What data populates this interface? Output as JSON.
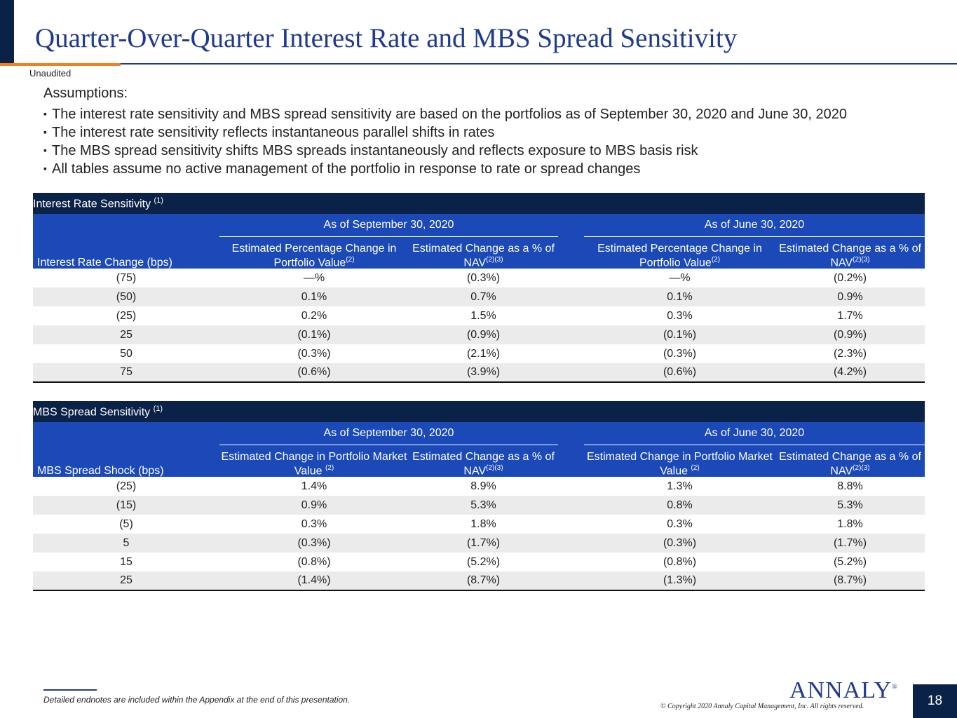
{
  "header": {
    "title": "Quarter-Over-Quarter Interest Rate and MBS Spread Sensitivity",
    "subtitle": "Unaudited"
  },
  "assumptions": {
    "heading": "Assumptions:",
    "bullets": [
      "The interest rate sensitivity and MBS spread sensitivity are based on the portfolios as of September 30, 2020 and June 30, 2020",
      "The interest rate sensitivity reflects instantaneous parallel shifts in rates",
      "The MBS spread sensitivity shifts MBS spreads instantaneously and reflects exposure to MBS basis risk",
      "All tables assume no active management of the portfolio in response to rate or spread changes"
    ]
  },
  "interest_table": {
    "title": "Interest Rate Sensitivity",
    "title_note": "(1)",
    "period1": "As of September 30, 2020",
    "period2": "As of June 30, 2020",
    "row_header": "Interest Rate Change (bps)",
    "col1_label": "Estimated Percentage Change in Portfolio Value",
    "col1_note": "(2)",
    "col2_label": "Estimated Change as a % of NAV",
    "col2_note": "(2)(3)",
    "rows": [
      {
        "change": "(75)",
        "sep_pv": "—%",
        "sep_nav": "(0.3%)",
        "jun_pv": "—%",
        "jun_nav": "(0.2%)"
      },
      {
        "change": "(50)",
        "sep_pv": "0.1%",
        "sep_nav": "0.7%",
        "jun_pv": "0.1%",
        "jun_nav": "0.9%"
      },
      {
        "change": "(25)",
        "sep_pv": "0.2%",
        "sep_nav": "1.5%",
        "jun_pv": "0.3%",
        "jun_nav": "1.7%"
      },
      {
        "change": "25",
        "sep_pv": "(0.1%)",
        "sep_nav": "(0.9%)",
        "jun_pv": "(0.1%)",
        "jun_nav": "(0.9%)"
      },
      {
        "change": "50",
        "sep_pv": "(0.3%)",
        "sep_nav": "(2.1%)",
        "jun_pv": "(0.3%)",
        "jun_nav": "(2.3%)"
      },
      {
        "change": "75",
        "sep_pv": "(0.6%)",
        "sep_nav": "(3.9%)",
        "jun_pv": "(0.6%)",
        "jun_nav": "(4.2%)"
      }
    ]
  },
  "spread_table": {
    "title": "MBS Spread Sensitivity",
    "title_note": "(1)",
    "period1": "As of September 30, 2020",
    "period2": "As of June 30, 2020",
    "row_header": "MBS Spread Shock (bps)",
    "col1_label": "Estimated Change in Portfolio Market Value",
    "col1_note": "(2)",
    "col2_label": "Estimated Change as a % of NAV",
    "col2_note": "(2)(3)",
    "rows": [
      {
        "change": "(25)",
        "sep_pv": "1.4%",
        "sep_nav": "8.9%",
        "jun_pv": "1.3%",
        "jun_nav": "8.8%"
      },
      {
        "change": "(15)",
        "sep_pv": "0.9%",
        "sep_nav": "5.3%",
        "jun_pv": "0.8%",
        "jun_nav": "5.3%"
      },
      {
        "change": "(5)",
        "sep_pv": "0.3%",
        "sep_nav": "1.8%",
        "jun_pv": "0.3%",
        "jun_nav": "1.8%"
      },
      {
        "change": "5",
        "sep_pv": "(0.3%)",
        "sep_nav": "(1.7%)",
        "jun_pv": "(0.3%)",
        "jun_nav": "(1.7%)"
      },
      {
        "change": "15",
        "sep_pv": "(0.8%)",
        "sep_nav": "(5.2%)",
        "jun_pv": "(0.8%)",
        "jun_nav": "(5.2%)"
      },
      {
        "change": "25",
        "sep_pv": "(1.4%)",
        "sep_nav": "(8.7%)",
        "jun_pv": "(1.3%)",
        "jun_nav": "(8.7%)"
      }
    ]
  },
  "footer": {
    "endnote": "Detailed endnotes are included within the Appendix at the end of this presentation.",
    "copyright": "© Copyright 2020 Annaly Capital Management, Inc.  All rights reserved.",
    "logo_text": "ANNALY",
    "logo_mark": "®",
    "page_number": "18"
  }
}
